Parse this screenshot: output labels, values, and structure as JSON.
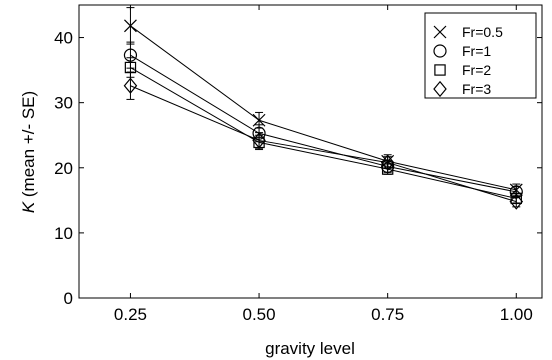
{
  "chart_data": {
    "type": "line",
    "xlabel": "gravity level",
    "ylabel_prefix": "K",
    "ylabel_suffix": " (mean +/- SE)",
    "xlim": [
      0.15,
      1.05
    ],
    "ylim": [
      0,
      45
    ],
    "x": [
      0.25,
      0.5,
      0.75,
      1.0
    ],
    "x_tick_values": [
      0.25,
      0.5,
      0.75,
      1.0
    ],
    "x_tick_labels": [
      "0.25",
      "0.50",
      "0.75",
      "1.00"
    ],
    "y_ticks": [
      0,
      10,
      20,
      30,
      40
    ],
    "y_tick_labels": [
      "0",
      "10",
      "20",
      "30",
      "40"
    ],
    "grid": false,
    "legend_position": "top-right",
    "line_color": "#000000",
    "series": [
      {
        "name": "Fr=0.5",
        "marker": "x",
        "values": [
          41.8,
          27.3,
          21.0,
          16.6
        ],
        "errors": [
          2.8,
          1.2,
          1.0,
          0.9
        ]
      },
      {
        "name": "Fr=1",
        "marker": "circle",
        "values": [
          37.3,
          25.3,
          20.2,
          16.3
        ],
        "errors": [
          2.0,
          1.3,
          0.9,
          0.8
        ]
      },
      {
        "name": "Fr=2",
        "marker": "square",
        "values": [
          35.4,
          23.9,
          19.8,
          15.3
        ],
        "errors": [
          1.5,
          1.1,
          0.8,
          0.7
        ]
      },
      {
        "name": "Fr=3",
        "marker": "diamond",
        "values": [
          32.6,
          24.2,
          20.8,
          14.8
        ],
        "errors": [
          2.1,
          1.2,
          0.9,
          0.8
        ]
      }
    ]
  }
}
